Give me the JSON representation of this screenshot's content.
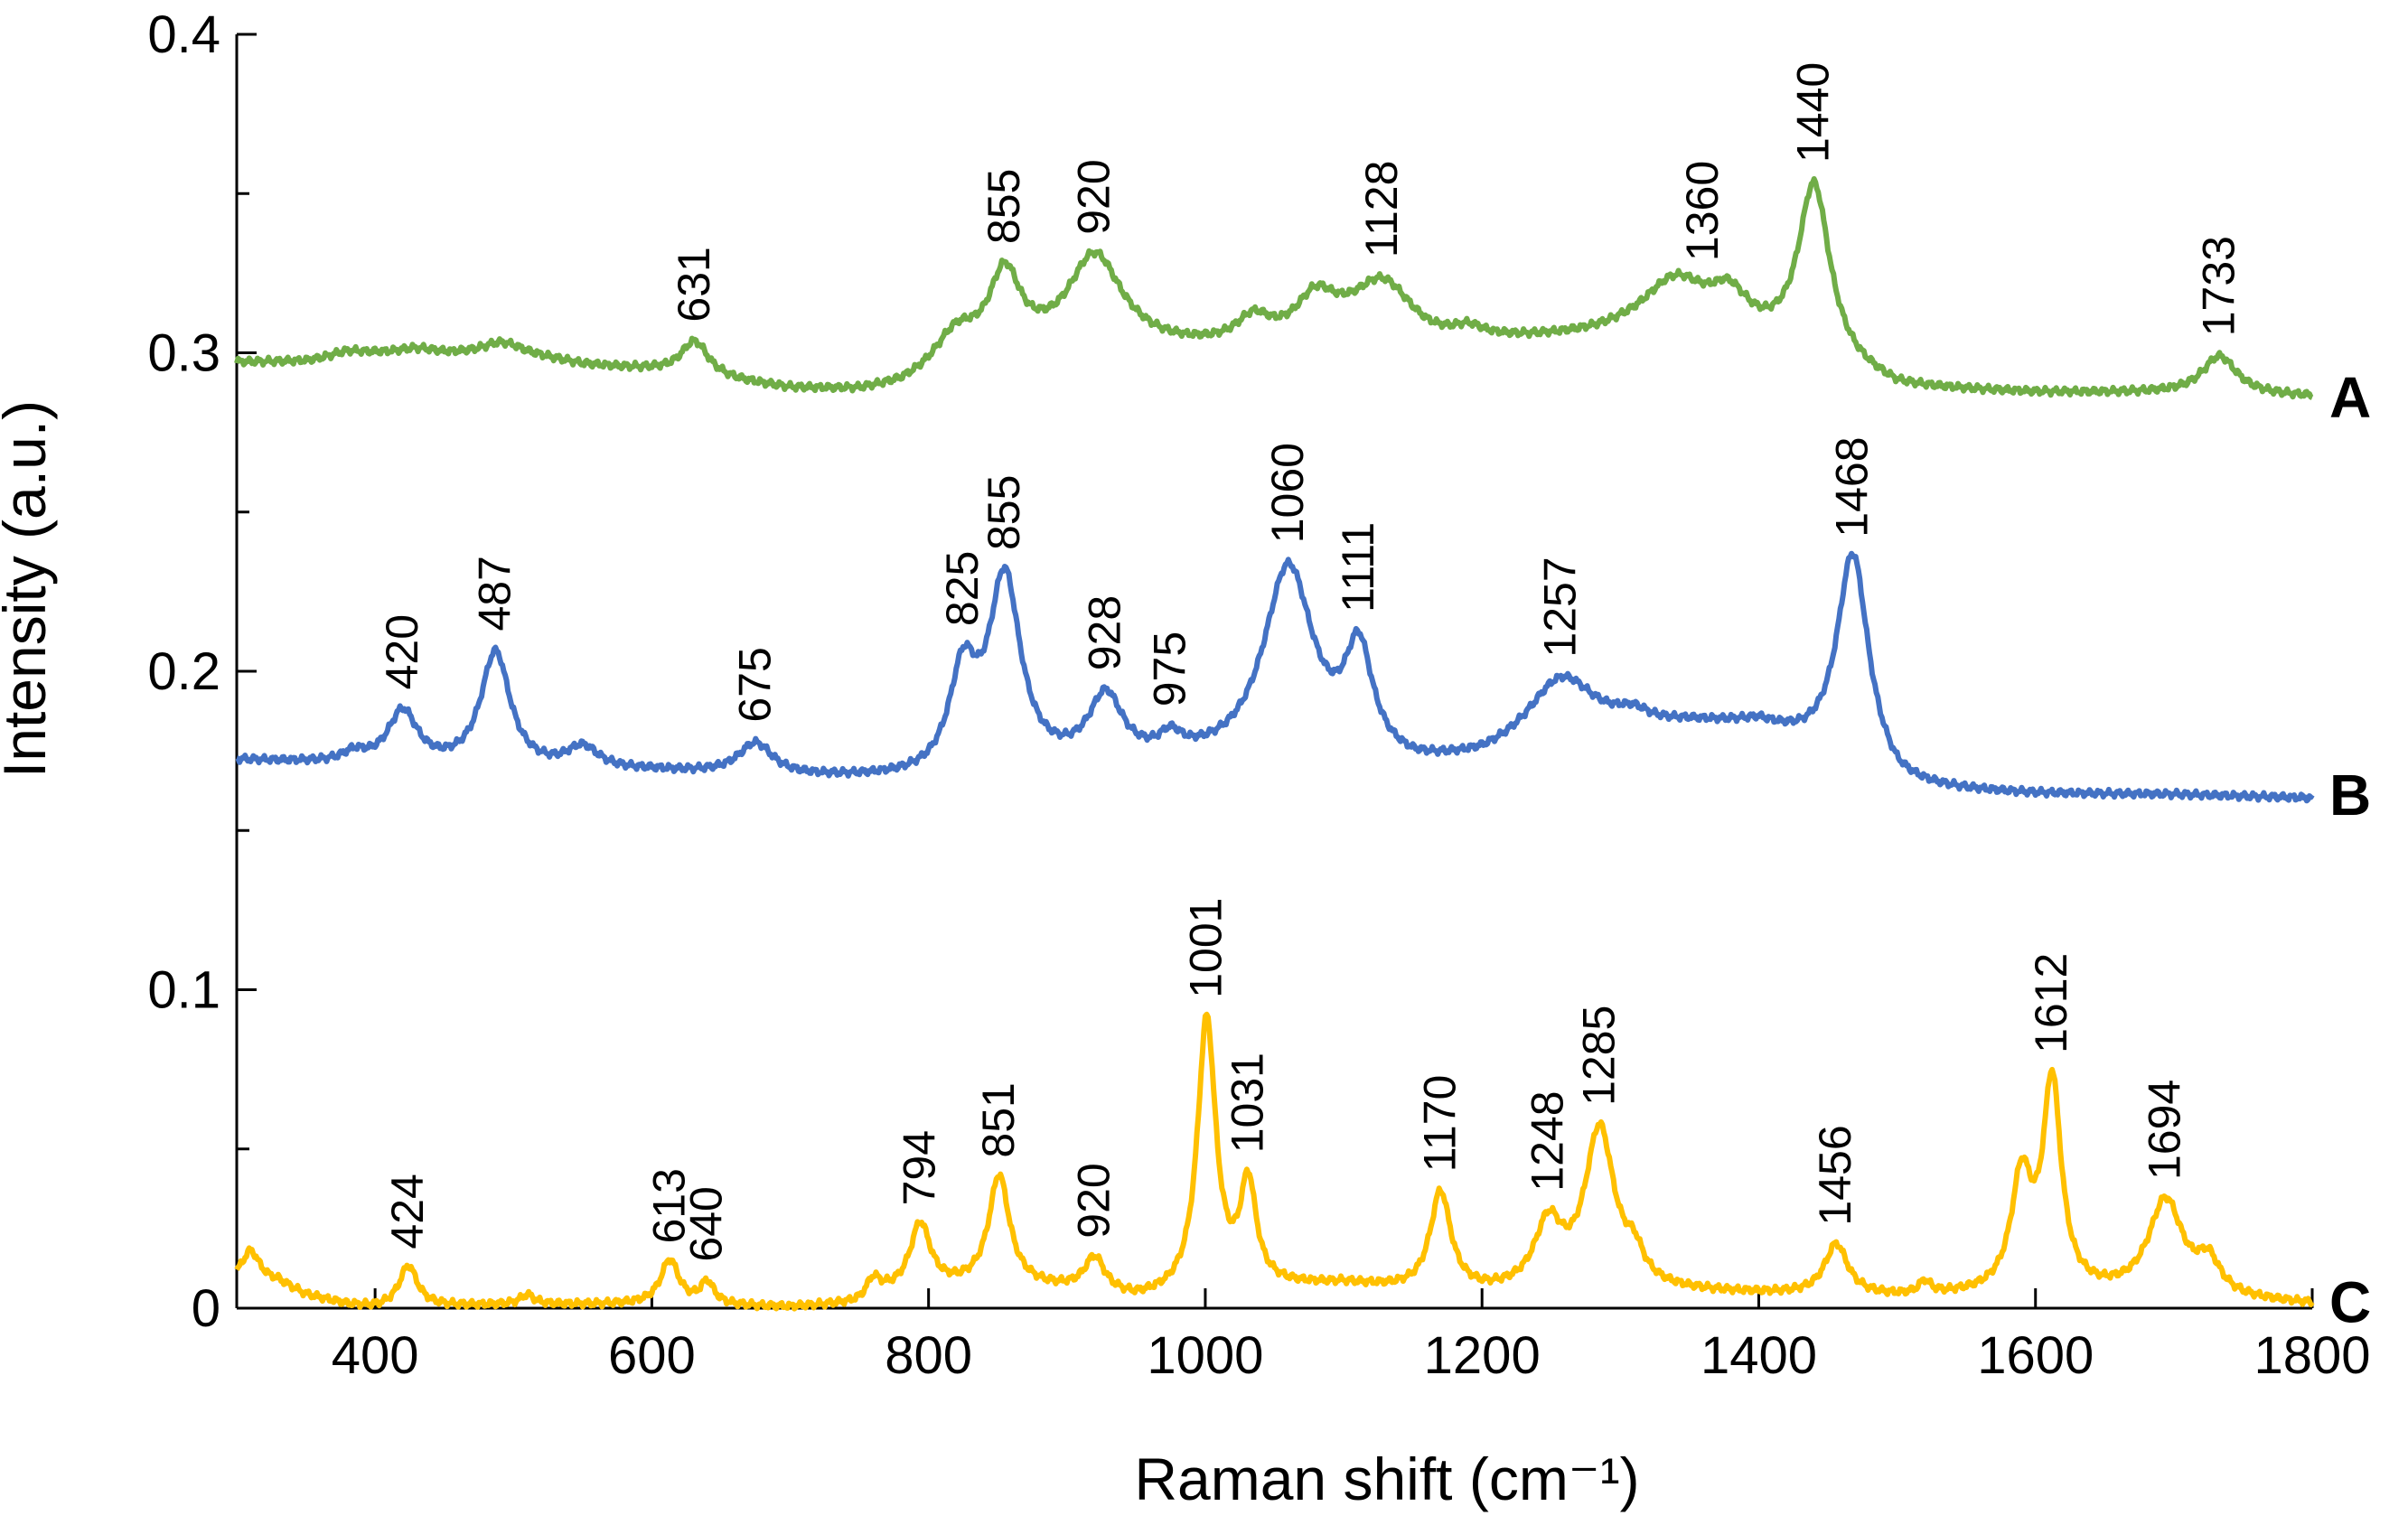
{
  "chart_data": {
    "type": "line",
    "title": "",
    "xlabel": "Raman shift (cm⁻¹)",
    "ylabel": "Intensity (a.u.)",
    "xlim": [
      300,
      1800
    ],
    "ylim": [
      0,
      0.4
    ],
    "x_ticks": [
      400,
      600,
      800,
      1000,
      1200,
      1400,
      1600,
      1800
    ],
    "x_tick_labels": [
      "400",
      "600",
      "800",
      "1000",
      "1200",
      "1400",
      "1600",
      "1800"
    ],
    "y_ticks": [
      0,
      0.1,
      0.2,
      0.3,
      0.4
    ],
    "y_tick_labels": [
      "0",
      "0.1",
      "0.2",
      "0.3",
      "0.4"
    ],
    "y_minor_ticks": [
      0.05,
      0.15,
      0.25,
      0.35
    ],
    "grid": false,
    "legend": "right-end series letters",
    "series": [
      {
        "name": "A",
        "color": "#70ad47",
        "baseline": [
          [
            300,
            0.297
          ],
          [
            350,
            0.297
          ],
          [
            400,
            0.299
          ],
          [
            450,
            0.299
          ],
          [
            500,
            0.3
          ],
          [
            550,
            0.296
          ],
          [
            600,
            0.294
          ],
          [
            700,
            0.288
          ],
          [
            750,
            0.287
          ],
          [
            780,
            0.288
          ],
          [
            850,
            0.295
          ],
          [
            880,
            0.298
          ],
          [
            950,
            0.3
          ],
          [
            1000,
            0.3
          ],
          [
            1040,
            0.3
          ],
          [
            1080,
            0.3
          ],
          [
            1100,
            0.301
          ],
          [
            1160,
            0.3
          ],
          [
            1200,
            0.302
          ],
          [
            1300,
            0.304
          ],
          [
            1390,
            0.303
          ],
          [
            1500,
            0.288
          ],
          [
            1600,
            0.287
          ],
          [
            1700,
            0.287
          ],
          [
            1800,
            0.286
          ]
        ],
        "peaks": [
          {
            "x": 380,
            "h": 0.002,
            "w": 15
          },
          {
            "x": 430,
            "h": 0.002,
            "w": 18
          },
          {
            "x": 490,
            "h": 0.003,
            "w": 15
          },
          {
            "x": 631,
            "h": 0.011,
            "w": 12
          },
          {
            "x": 820,
            "h": 0.012,
            "w": 20
          },
          {
            "x": 855,
            "h": 0.026,
            "w": 14
          },
          {
            "x": 920,
            "h": 0.03,
            "w": 24
          },
          {
            "x": 1035,
            "h": 0.008,
            "w": 15
          },
          {
            "x": 1080,
            "h": 0.014,
            "w": 18
          },
          {
            "x": 1128,
            "h": 0.02,
            "w": 28
          },
          {
            "x": 1190,
            "h": 0.003,
            "w": 12
          },
          {
            "x": 1340,
            "h": 0.018,
            "w": 30
          },
          {
            "x": 1378,
            "h": 0.01,
            "w": 15
          },
          {
            "x": 1440,
            "h": 0.055,
            "w": 14
          },
          {
            "x": 1733,
            "h": 0.012,
            "w": 15
          }
        ],
        "labels": [
          {
            "x": 631,
            "text": "631"
          },
          {
            "x": 855,
            "text": "855"
          },
          {
            "x": 920,
            "text": "920"
          },
          {
            "x": 1128,
            "text": "1128"
          },
          {
            "x": 1360,
            "text": "1360"
          },
          {
            "x": 1440,
            "text": "1440"
          },
          {
            "x": 1733,
            "text": "1733"
          }
        ]
      },
      {
        "name": "B",
        "color": "#4472c4",
        "baseline": [
          [
            300,
            0.172
          ],
          [
            350,
            0.171
          ],
          [
            400,
            0.17
          ],
          [
            450,
            0.169
          ],
          [
            500,
            0.168
          ],
          [
            600,
            0.168
          ],
          [
            700,
            0.166
          ],
          [
            800,
            0.165
          ],
          [
            900,
            0.168
          ],
          [
            1000,
            0.17
          ],
          [
            1100,
            0.17
          ],
          [
            1150,
            0.168
          ],
          [
            1200,
            0.17
          ],
          [
            1300,
            0.18
          ],
          [
            1350,
            0.182
          ],
          [
            1400,
            0.182
          ],
          [
            1500,
            0.162
          ],
          [
            1600,
            0.161
          ],
          [
            1700,
            0.161
          ],
          [
            1800,
            0.16
          ]
        ],
        "peaks": [
          {
            "x": 385,
            "h": 0.003,
            "w": 10
          },
          {
            "x": 420,
            "h": 0.017,
            "w": 13
          },
          {
            "x": 487,
            "h": 0.037,
            "w": 13
          },
          {
            "x": 550,
            "h": 0.007,
            "w": 14
          },
          {
            "x": 675,
            "h": 0.01,
            "w": 15
          },
          {
            "x": 825,
            "h": 0.03,
            "w": 12
          },
          {
            "x": 855,
            "h": 0.06,
            "w": 14
          },
          {
            "x": 928,
            "h": 0.021,
            "w": 15
          },
          {
            "x": 975,
            "h": 0.006,
            "w": 10
          },
          {
            "x": 1060,
            "h": 0.061,
            "w": 22
          },
          {
            "x": 1111,
            "h": 0.032,
            "w": 12
          },
          {
            "x": 1257,
            "h": 0.021,
            "w": 30
          },
          {
            "x": 1310,
            "h": 0.003,
            "w": 12
          },
          {
            "x": 1468,
            "h": 0.068,
            "w": 14
          }
        ],
        "labels": [
          {
            "x": 420,
            "text": "420"
          },
          {
            "x": 487,
            "text": "487"
          },
          {
            "x": 675,
            "text": "675"
          },
          {
            "x": 825,
            "text": "825"
          },
          {
            "x": 855,
            "text": "855"
          },
          {
            "x": 928,
            "text": "928"
          },
          {
            "x": 975,
            "text": "975"
          },
          {
            "x": 1060,
            "text": "1060"
          },
          {
            "x": 1111,
            "text": "1111"
          },
          {
            "x": 1257,
            "text": "1257"
          },
          {
            "x": 1468,
            "text": "1468"
          }
        ]
      },
      {
        "name": "C",
        "color": "#ffc000",
        "baseline": [
          [
            300,
            0.008
          ],
          [
            330,
            0.008
          ],
          [
            350,
            0.004
          ],
          [
            380,
            0.001
          ],
          [
            400,
            0.0
          ],
          [
            500,
            0.001
          ],
          [
            600,
            0.001
          ],
          [
            700,
            0.0
          ],
          [
            750,
            0.001
          ],
          [
            770,
            0.004
          ],
          [
            820,
            0.006
          ],
          [
            850,
            0.007
          ],
          [
            900,
            0.005
          ],
          [
            950,
            0.002
          ],
          [
            980,
            0.003
          ],
          [
            1050,
            0.006
          ],
          [
            1100,
            0.007
          ],
          [
            1150,
            0.005
          ],
          [
            1200,
            0.004
          ],
          [
            1300,
            0.005
          ],
          [
            1400,
            0.004
          ],
          [
            1500,
            0.003
          ],
          [
            1600,
            0.004
          ],
          [
            1700,
            0.003
          ],
          [
            1800,
            0.001
          ]
        ],
        "peaks": [
          {
            "x": 310,
            "h": 0.01,
            "w": 8
          },
          {
            "x": 424,
            "h": 0.013,
            "w": 8
          },
          {
            "x": 510,
            "h": 0.003,
            "w": 6
          },
          {
            "x": 613,
            "h": 0.014,
            "w": 8
          },
          {
            "x": 640,
            "h": 0.007,
            "w": 6
          },
          {
            "x": 760,
            "h": 0.006,
            "w": 6
          },
          {
            "x": 794,
            "h": 0.021,
            "w": 9
          },
          {
            "x": 851,
            "h": 0.034,
            "w": 9
          },
          {
            "x": 920,
            "h": 0.011,
            "w": 9
          },
          {
            "x": 1001,
            "h": 0.086,
            "w": 8
          },
          {
            "x": 1031,
            "h": 0.032,
            "w": 7
          },
          {
            "x": 1170,
            "h": 0.031,
            "w": 9
          },
          {
            "x": 1248,
            "h": 0.02,
            "w": 12
          },
          {
            "x": 1285,
            "h": 0.05,
            "w": 13
          },
          {
            "x": 1310,
            "h": 0.008,
            "w": 8
          },
          {
            "x": 1456,
            "h": 0.016,
            "w": 10
          },
          {
            "x": 1520,
            "h": 0.004,
            "w": 5
          },
          {
            "x": 1590,
            "h": 0.035,
            "w": 9
          },
          {
            "x": 1612,
            "h": 0.065,
            "w": 8
          },
          {
            "x": 1694,
            "h": 0.03,
            "w": 15
          },
          {
            "x": 1725,
            "h": 0.01,
            "w": 10
          }
        ],
        "labels": [
          {
            "x": 424,
            "text": "424"
          },
          {
            "x": 613,
            "text": "613"
          },
          {
            "x": 640,
            "text": "640"
          },
          {
            "x": 794,
            "text": "794"
          },
          {
            "x": 851,
            "text": "851"
          },
          {
            "x": 920,
            "text": "920"
          },
          {
            "x": 1001,
            "text": "1001"
          },
          {
            "x": 1031,
            "text": "1031"
          },
          {
            "x": 1170,
            "text": "1170"
          },
          {
            "x": 1248,
            "text": "1248"
          },
          {
            "x": 1285,
            "text": "1285"
          },
          {
            "x": 1456,
            "text": "1456"
          },
          {
            "x": 1612,
            "text": "1612"
          },
          {
            "x": 1694,
            "text": "1694"
          }
        ]
      }
    ]
  }
}
